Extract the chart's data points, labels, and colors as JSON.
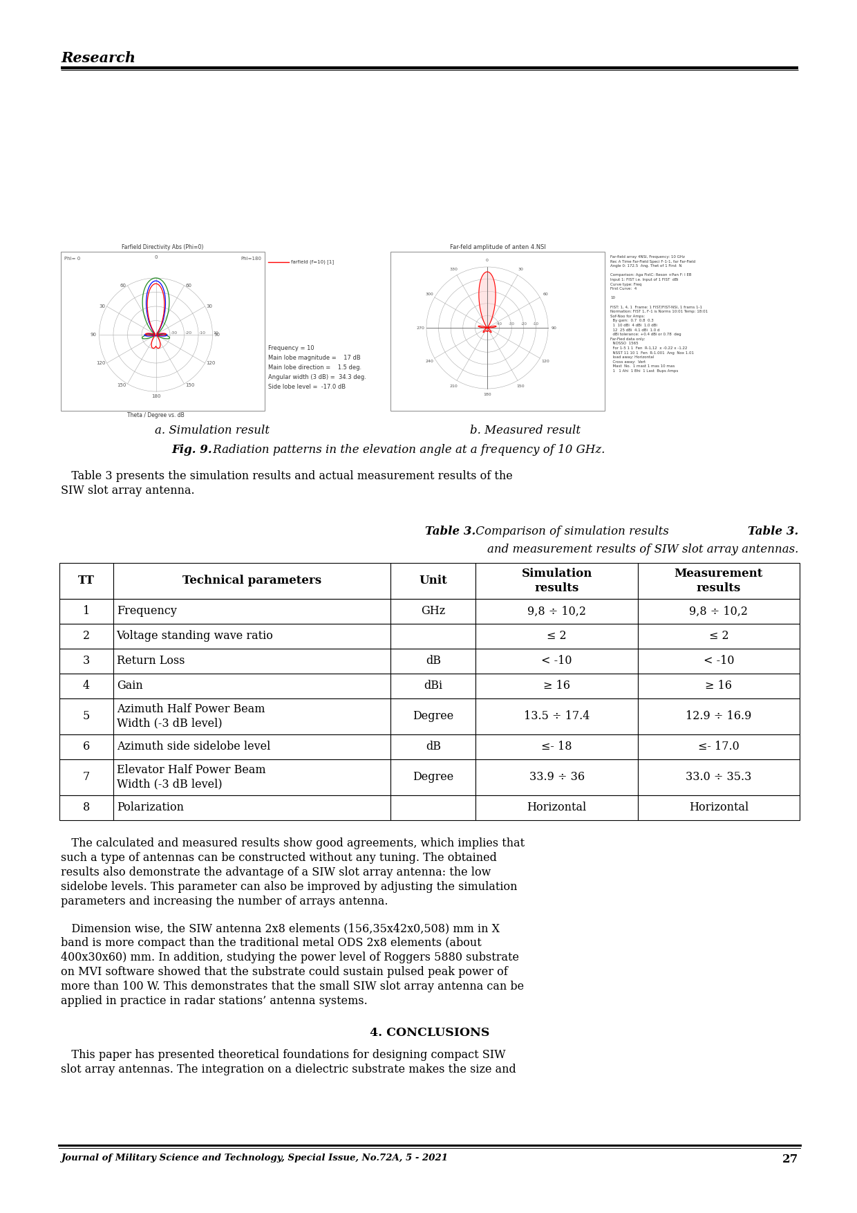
{
  "page_title": "Research",
  "fig9_caption_bold": "Fig. 9.",
  "fig9_caption_rest": " Radiation patterns in the elevation angle at a frequency of 10 GHz.",
  "sim_label": "a. Simulation result",
  "meas_label": "b. Measured result",
  "para1_lines": [
    "   Table 3 presents the simulation results and actual measurement results of the",
    "SIW slot array antenna."
  ],
  "table_title_bold": "Table 3.",
  "table_title_rest": " Comparison of simulation results",
  "table_title2": "and measurement results of SIW slot array antennas.",
  "table_rows": [
    [
      "1",
      "Frequency",
      "GHz",
      "9,8 ÷ 10,2",
      "9,8 ÷ 10,2"
    ],
    [
      "2",
      "Voltage standing wave ratio",
      "",
      "≤ 2",
      "≤ 2"
    ],
    [
      "3",
      "Return Loss",
      "dB",
      "< -10",
      "< -10"
    ],
    [
      "4",
      "Gain",
      "dBi",
      "≥ 16",
      "≥ 16"
    ],
    [
      "5",
      "Azimuth Half Power Beam\nWidth (-3 dB level)",
      "Degree",
      "13.5 ÷ 17.4",
      "12.9 ÷ 16.9"
    ],
    [
      "6",
      "Azimuth side sidelobe level",
      "dB",
      "≤- 18",
      "≤- 17.0"
    ],
    [
      "7",
      "Elevator Half Power Beam\nWidth (-3 dB level)",
      "Degree",
      "33.9 ÷ 36",
      "33.0 ÷ 35.3"
    ],
    [
      "8",
      "Polarization",
      "",
      "Horizontal",
      "Horizontal"
    ]
  ],
  "para2_lines": [
    "   The calculated and measured results show good agreements, which implies that",
    "such a type of antennas can be constructed without any tuning. The obtained",
    "results also demonstrate the advantage of a SIW slot array antenna: the low",
    "sidelobe levels. This parameter can also be improved by adjusting the simulation",
    "parameters and increasing the number of arrays antenna."
  ],
  "para3_lines": [
    "   Dimension wise, the SIW antenna 2x8 elements (156,35x42x0,508) mm in X",
    "band is more compact than the traditional metal ODS 2x8 elements (about",
    "400x30x60) mm. In addition, studying the power level of Roggers 5880 substrate",
    "on MVI software showed that the substrate could sustain pulsed peak power of",
    "more than 100 W. This demonstrates that the small SIW slot array antenna can be",
    "applied in practice in radar stations’ antenna systems."
  ],
  "section4": "4. CONCLUSIONS",
  "para4_lines": [
    "   This paper has presented theoretical foundations for designing compact SIW",
    "slot array antennas. The integration on a dielectric substrate makes the size and"
  ],
  "footer": "Journal of Military Science and Technology, Special Issue, No.72A, 5 - 2021",
  "page_num": "27",
  "bg_color": "#ffffff",
  "text_color": "#000000"
}
